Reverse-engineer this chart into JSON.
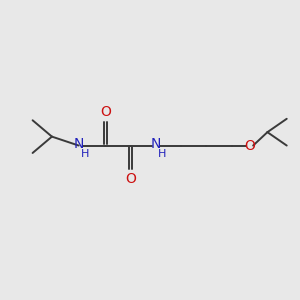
{
  "bg_color": "#e8e8e8",
  "bond_color": "#3a3a3a",
  "N_color": "#2222bb",
  "O_color": "#cc1111",
  "line_width": 1.4,
  "font_size": 9.5,
  "figsize": [
    3.0,
    3.0
  ],
  "dpi": 100,
  "xlim": [
    0,
    10
  ],
  "ylim": [
    0,
    10
  ]
}
